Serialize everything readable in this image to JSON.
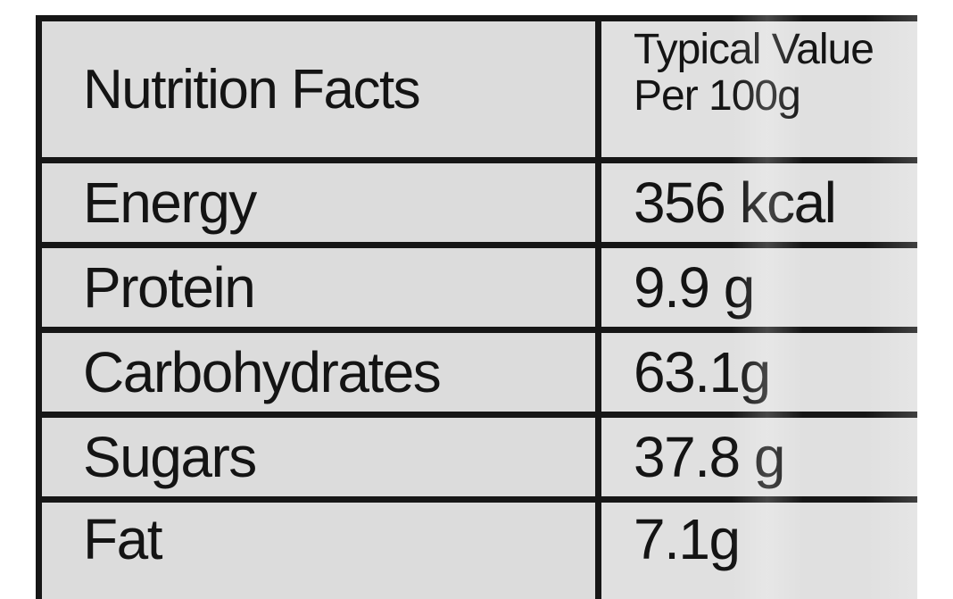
{
  "table": {
    "title": "Nutrition Facts",
    "value_header_line1": "Typical Value",
    "value_header_line2": "Per 100g",
    "rows": [
      {
        "nutrient": "Energy",
        "value": "356 kcal"
      },
      {
        "nutrient": "Protein",
        "value": "9.9 g"
      },
      {
        "nutrient": "Carbohydrates",
        "value": "63.1g"
      },
      {
        "nutrient": "Sugars",
        "value": "37.8 g"
      },
      {
        "nutrient": "Fat",
        "value": "7.1g"
      }
    ]
  }
}
